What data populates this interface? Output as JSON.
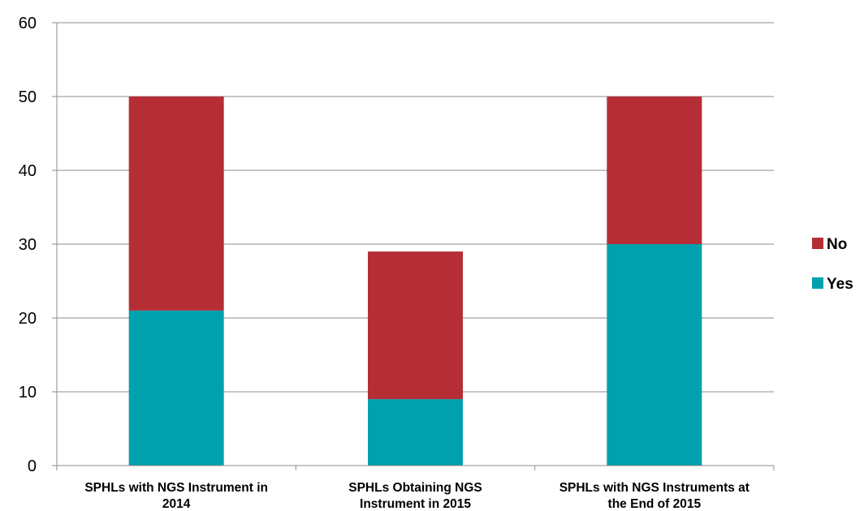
{
  "chart_data": {
    "type": "bar",
    "stacked": true,
    "categories": [
      [
        "SPHLs with NGS Instrument in",
        "2014"
      ],
      [
        "SPHLs Obtaining NGS",
        "Instrument in 2015"
      ],
      [
        "SPHLs with NGS Instruments at",
        "the End of 2015"
      ]
    ],
    "series": [
      {
        "name": "Yes",
        "color": "#00a1ae",
        "values": [
          21,
          9,
          30
        ]
      },
      {
        "name": "No",
        "color": "#b52e36",
        "values": [
          29,
          20,
          20
        ]
      }
    ],
    "ylim": [
      0,
      60
    ],
    "yticks": [
      0,
      10,
      20,
      30,
      40,
      50,
      60
    ],
    "grid": true,
    "legend_position": "right",
    "legend_order": [
      "No",
      "Yes"
    ],
    "title": "",
    "xlabel": "",
    "ylabel": ""
  }
}
